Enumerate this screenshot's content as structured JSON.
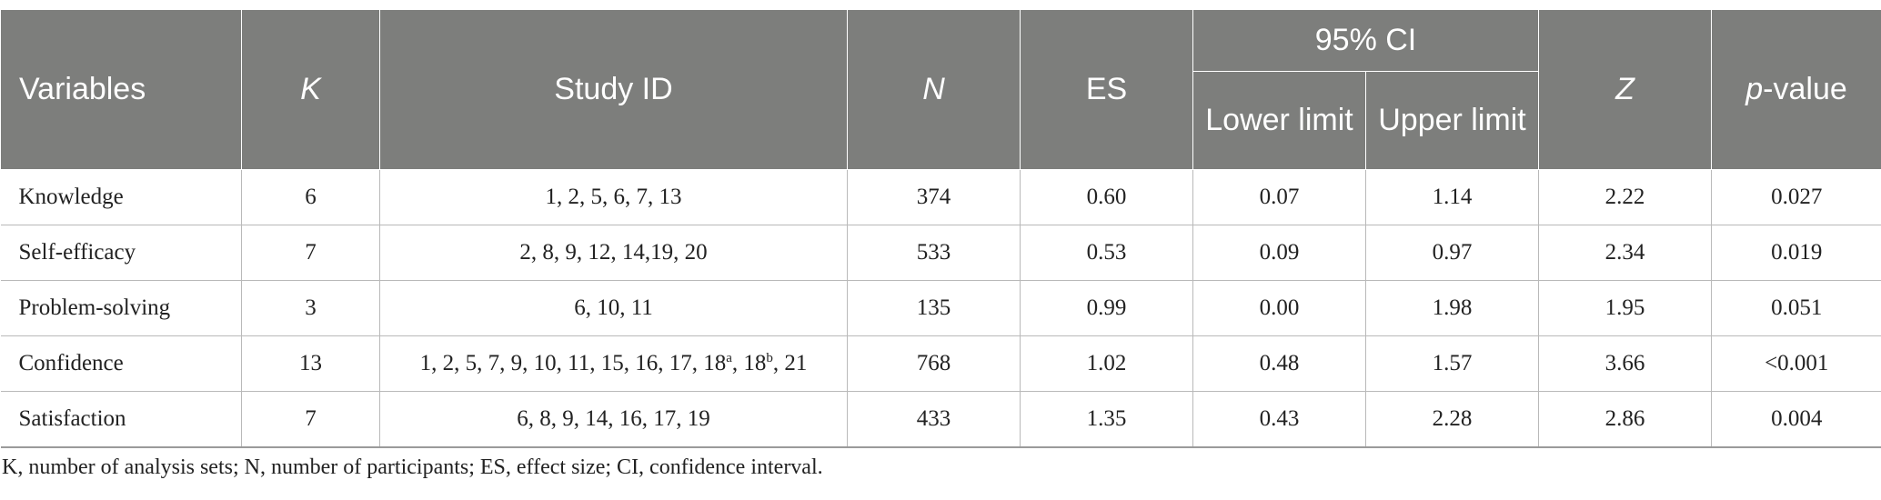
{
  "table": {
    "headers": {
      "variables": "Variables",
      "k": "K",
      "study_id": "Study ID",
      "n": "N",
      "es": "ES",
      "ci": "95% CI",
      "lower_limit": "Lower limit",
      "upper_limit": "Upper limit",
      "z": "Z",
      "p_value_italic": "p",
      "p_value_rest": "-value"
    },
    "rows": [
      {
        "variable": "Knowledge",
        "k": "6",
        "study_id": "1, 2, 5, 6, 7, 13",
        "n": "374",
        "es": "0.60",
        "lower": "0.07",
        "upper": "1.14",
        "z": "2.22",
        "p": "0.027"
      },
      {
        "variable": "Self-efficacy",
        "k": "7",
        "study_id": "2, 8, 9, 12, 14,19, 20",
        "n": "533",
        "es": "0.53",
        "lower": "0.09",
        "upper": "0.97",
        "z": "2.34",
        "p": "0.019"
      },
      {
        "variable": "Problem-solving",
        "k": "3",
        "study_id": "6, 10, 11",
        "n": "135",
        "es": "0.99",
        "lower": "0.00",
        "upper": "1.98",
        "z": "1.95",
        "p": "0.051"
      },
      {
        "variable": "Confidence",
        "k": "13",
        "study_id_pre": "1, 2, 5, 7, 9, 10, 11, 15, 16, 17, 18",
        "sup_a": "a",
        "study_id_mid": ", 18",
        "sup_b": "b",
        "study_id_post": ", 21",
        "n": "768",
        "es": "1.02",
        "lower": "0.48",
        "upper": "1.57",
        "z": "3.66",
        "p": "<0.001"
      },
      {
        "variable": "Satisfaction",
        "k": "7",
        "study_id": "6, 8, 9, 14, 16, 17, 19",
        "n": "433",
        "es": "1.35",
        "lower": "0.43",
        "upper": "2.28",
        "z": "2.86",
        "p": "0.004"
      }
    ]
  },
  "footnote": "K, number of analysis sets; N, number of participants; ES, effect size; CI, confidence interval."
}
